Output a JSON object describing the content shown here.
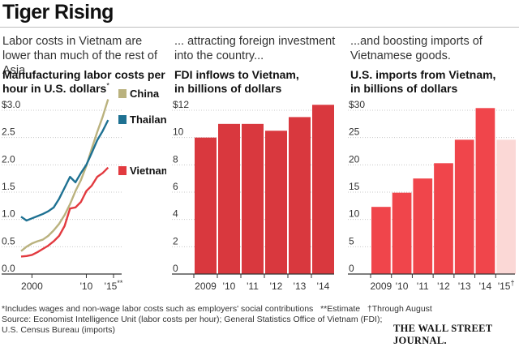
{
  "title": "Tiger Rising",
  "panels": [
    {
      "intro": "Labor costs in Vietnam are lower than much of the rest of Asia...",
      "subtitle": "Manufacturing labor costs per hour in U.S. dollars",
      "subtitle_marker": "*"
    },
    {
      "intro": "... attracting foreign investment into the country...",
      "subtitle_line1": "FDI inflows to Vietnam,",
      "subtitle_line2": "in billions of dollars"
    },
    {
      "intro": "...and boosting imports of Vietnamese goods.",
      "subtitle_line1": "U.S. imports from Vietnam,",
      "subtitle_line2": "in billions of dollars"
    }
  ],
  "colors": {
    "china": "#bab27e",
    "thailand": "#1e7192",
    "vietnam": "#e23a3f",
    "bar": "#d9383e",
    "bar_import": "#f0454b",
    "bar_estimate": "#fbd8d6",
    "grid": "#c8c8c8"
  },
  "chart_data": [
    {
      "type": "line",
      "ylim": [
        0,
        3.0
      ],
      "y_ticks": [
        "$3.0",
        "2.5",
        "2.0",
        "1.5",
        "1.0",
        "0.5",
        "0.0"
      ],
      "x_range": [
        1998,
        2015
      ],
      "x_ticks": [
        {
          "x": 2000,
          "label": "2000"
        },
        {
          "x": 2010,
          "label": "'10"
        },
        {
          "x": 2015,
          "label": "'15",
          "marker": "**"
        }
      ],
      "series": [
        {
          "name": "China",
          "x": [
            1998,
            1999,
            2000,
            2001,
            2002,
            2003,
            2004,
            2005,
            2006,
            2007,
            2008,
            2009,
            2010,
            2011,
            2012,
            2013,
            2014
          ],
          "values": [
            0.42,
            0.5,
            0.56,
            0.6,
            0.63,
            0.7,
            0.8,
            0.92,
            1.08,
            1.28,
            1.52,
            1.72,
            1.98,
            2.3,
            2.6,
            2.88,
            3.2
          ]
        },
        {
          "name": "Thailand",
          "x": [
            1998,
            1999,
            2000,
            2001,
            2002,
            2003,
            2004,
            2005,
            2006,
            2007,
            2008,
            2009,
            2010,
            2011,
            2012,
            2013,
            2014
          ],
          "values": [
            1.05,
            0.98,
            1.02,
            1.06,
            1.1,
            1.15,
            1.22,
            1.38,
            1.58,
            1.78,
            1.68,
            1.85,
            2.0,
            2.22,
            2.45,
            2.62,
            2.82
          ]
        },
        {
          "name": "Vietnam",
          "x": [
            1998,
            1999,
            2000,
            2001,
            2002,
            2003,
            2004,
            2005,
            2006,
            2007,
            2008,
            2009,
            2010,
            2011,
            2012,
            2013,
            2014
          ],
          "values": [
            0.32,
            0.33,
            0.35,
            0.4,
            0.46,
            0.52,
            0.6,
            0.7,
            0.88,
            1.2,
            1.22,
            1.32,
            1.52,
            1.62,
            1.78,
            1.85,
            1.95
          ]
        }
      ]
    },
    {
      "type": "bar",
      "ylim": [
        0,
        12
      ],
      "y_ticks": [
        "$12",
        "10",
        "8",
        "6",
        "4",
        "2",
        "0"
      ],
      "categories": [
        "2009",
        "'10",
        "'11",
        "'12",
        "'13",
        "'14"
      ],
      "values": [
        10.0,
        11.0,
        11.0,
        10.5,
        11.5,
        12.4
      ]
    },
    {
      "type": "bar",
      "ylim": [
        0,
        30
      ],
      "y_ticks": [
        "$30",
        "25",
        "20",
        "15",
        "10",
        "5",
        "0"
      ],
      "categories": [
        "2009",
        "'10",
        "'11",
        "'12",
        "'13",
        "'14",
        "'15"
      ],
      "category_markers": [
        "",
        "",
        "",
        "",
        "",
        "",
        "†"
      ],
      "values": [
        12.3,
        14.9,
        17.5,
        20.3,
        24.6,
        30.4,
        24.6
      ],
      "estimate_index": 6
    }
  ],
  "footnotes": {
    "line1_a": "*Includes wages and non-wage labor costs such as employers' social contributions",
    "line1_b": "**Estimate",
    "line1_c": "†Through August",
    "line2": "Source: Economist Intelligence Unit (labor costs per hour); General Statistics Office of Vietnam (FDI);",
    "line3": "U.S. Census Bureau (imports)"
  },
  "logo": "THE WALL STREET JOURNAL."
}
